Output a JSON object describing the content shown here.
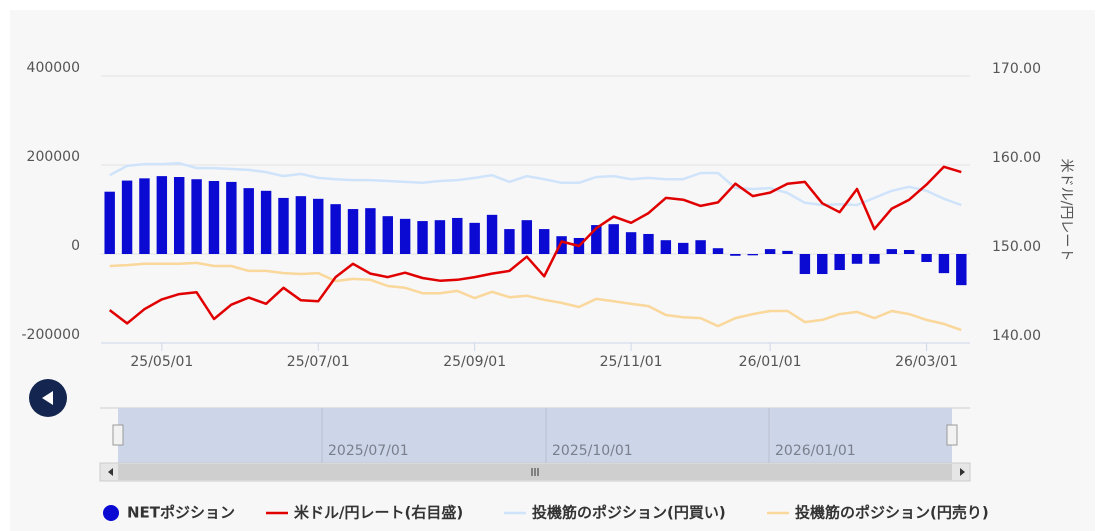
{
  "chart_data": {
    "type": "combo",
    "y2_title": "米ドル/円レート",
    "categories": [
      null,
      null,
      null,
      "25/05/01",
      null,
      null,
      null,
      null,
      null,
      null,
      null,
      null,
      "25/07/01",
      null,
      null,
      null,
      null,
      null,
      null,
      null,
      null,
      "25/09/01",
      null,
      null,
      null,
      null,
      null,
      null,
      null,
      null,
      "25/11/01",
      null,
      null,
      null,
      null,
      null,
      null,
      null,
      "26/01/01",
      null,
      null,
      null,
      null,
      null,
      null,
      null,
      null,
      "26/03/01",
      null,
      null
    ],
    "ylim": [
      -200000,
      400000
    ],
    "yticks": [
      -200000,
      0,
      200000,
      400000
    ],
    "y2lim": [
      140,
      170
    ],
    "y2ticks": [
      {
        "value": 140,
        "label": "140.00"
      },
      {
        "value": 150,
        "label": "150.00"
      },
      {
        "value": 160,
        "label": "160.00"
      },
      {
        "value": 170,
        "label": "170.00"
      }
    ],
    "grid": true,
    "legend": "bottom",
    "series": [
      {
        "name": "NETポジション",
        "type": "bar",
        "color": "#0a0ad2",
        "values": [
          140000,
          165000,
          170000,
          175000,
          173000,
          168000,
          164000,
          162000,
          148000,
          142000,
          126000,
          130000,
          124000,
          112000,
          101000,
          103000,
          85000,
          79000,
          74000,
          76000,
          81000,
          70000,
          88000,
          56000,
          76000,
          56000,
          40000,
          36000,
          65000,
          67000,
          49000,
          45000,
          31000,
          25000,
          31000,
          13000,
          -4000,
          -3000,
          11000,
          7000,
          -45000,
          -45000,
          -36000,
          -22000,
          -22000,
          11000,
          9000,
          -18000,
          -43000,
          -70000
        ]
      },
      {
        "name": "米ドル/円レート(右目盛)",
        "type": "line",
        "axis": "y2",
        "color": "#e00000",
        "values": [
          143.7,
          142.2,
          143.8,
          144.9,
          145.5,
          145.7,
          142.7,
          144.3,
          145.1,
          144.4,
          146.2,
          144.8,
          144.7,
          147.4,
          148.9,
          147.8,
          147.4,
          147.9,
          147.3,
          147.0,
          147.1,
          147.4,
          147.8,
          148.1,
          149.7,
          147.5,
          151.4,
          150.9,
          152.9,
          154.2,
          153.5,
          154.6,
          156.3,
          156.1,
          155.4,
          155.8,
          157.9,
          156.5,
          156.9,
          157.9,
          158.1,
          155.7,
          154.7,
          157.3,
          152.8,
          155.1,
          156.1,
          157.8,
          159.8,
          159.2
        ]
      },
      {
        "name": "投機筋のポジション(円買い)",
        "type": "line",
        "color": "#cfe3fb",
        "values": [
          177000,
          198000,
          202000,
          202000,
          204000,
          193000,
          193000,
          191000,
          189000,
          184000,
          175000,
          180000,
          171000,
          168000,
          166000,
          166000,
          164000,
          162000,
          160000,
          164000,
          166000,
          171000,
          177000,
          162000,
          175000,
          168000,
          160000,
          160000,
          173000,
          175000,
          168000,
          171000,
          168000,
          168000,
          182000,
          182000,
          148000,
          146000,
          148000,
          137000,
          115000,
          110000,
          112000,
          110000,
          126000,
          142000,
          151000,
          142000,
          124000,
          110000
        ]
      },
      {
        "name": "投機筋のポジション(円売り)",
        "type": "line",
        "color": "#fad79a",
        "values": [
          -27000,
          -25000,
          -22000,
          -22000,
          -22000,
          -20000,
          -27000,
          -27000,
          -38000,
          -38000,
          -43000,
          -45000,
          -43000,
          -61000,
          -56000,
          -58000,
          -72000,
          -76000,
          -88000,
          -88000,
          -83000,
          -99000,
          -85000,
          -97000,
          -94000,
          -103000,
          -110000,
          -119000,
          -101000,
          -106000,
          -112000,
          -117000,
          -137000,
          -142000,
          -144000,
          -162000,
          -144000,
          -135000,
          -128000,
          -128000,
          -153000,
          -148000,
          -135000,
          -130000,
          -144000,
          -128000,
          -135000,
          -148000,
          -157000,
          -171000
        ]
      }
    ]
  },
  "navigator": {
    "labels": [
      "2025/07/01",
      "2025/10/01",
      "2026/01/01"
    ]
  }
}
